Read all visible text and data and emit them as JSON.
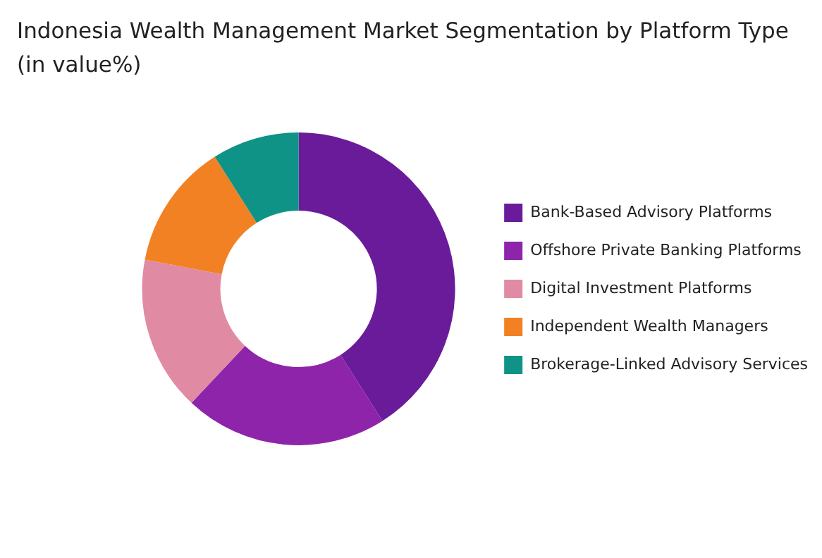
{
  "chart_data": {
    "type": "donut",
    "title": "Indonesia Wealth Management Market Segmentation by Platform Type (in value%)",
    "categories": [
      "Bank-Based Advisory Platforms",
      "Offshore Private Banking Platforms",
      "Digital Investment Platforms",
      "Independent Wealth Managers",
      "Brokerage-Linked Advisory Services"
    ],
    "values": [
      41,
      21,
      16,
      13,
      9
    ],
    "colors": [
      "#6a1b9a",
      "#8e24aa",
      "#e08aa3",
      "#f28123",
      "#0f9386"
    ],
    "legend": "right"
  }
}
